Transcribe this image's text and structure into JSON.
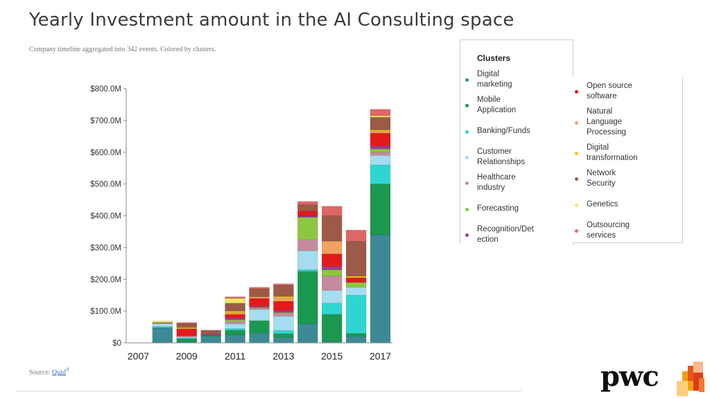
{
  "slide": {
    "title": "Yearly Investment amount in the AI Consulting space",
    "subtitle": "Company timeline aggregated into 342 events. Colored by clusters.",
    "source_prefix": "Source: ",
    "source_name": "Quid",
    "source_mark": "®"
  },
  "logo": {
    "text": "pwc"
  },
  "legend": {
    "title": "Clusters",
    "items": [
      {
        "label": "Digital marketing",
        "color": "#3d8a96"
      },
      {
        "label": "Mobile Application",
        "color": "#1a9850"
      },
      {
        "label": "Banking/Funds",
        "color": "#2fd6d1"
      },
      {
        "label": "Customer Relationships",
        "color": "#a6dcef"
      },
      {
        "label": "Healthcare industry",
        "color": "#c48b9c"
      },
      {
        "label": "Forecasting",
        "color": "#8dc63f"
      },
      {
        "label": "Recognition/Detection",
        "color": "#9b3d96"
      },
      {
        "label": "Open source software",
        "color": "#e31a1c"
      },
      {
        "label": "Natural Language Processing",
        "color": "#f4a261"
      },
      {
        "label": "Digital transformation",
        "color": "#f2c40f"
      },
      {
        "label": "Network Security",
        "color": "#9c5a47"
      },
      {
        "label": "Genetics",
        "color": "#f5e663"
      },
      {
        "label": "Outsourcing services",
        "color": "#e06666"
      }
    ]
  },
  "chart_data": {
    "type": "bar",
    "stacked": true,
    "categories": [
      "2007",
      "2008",
      "2009",
      "2010",
      "2011",
      "2012",
      "2013",
      "2014",
      "2015",
      "2016",
      "2017"
    ],
    "x_tick_labels": [
      "2007",
      "2009",
      "2011",
      "2013",
      "2015",
      "2017"
    ],
    "y_ticks": [
      "$0",
      "$100.0M",
      "$200.0M",
      "$300.0M",
      "$400.0M",
      "$500.0M",
      "$600.0M",
      "$700.0M",
      "$800.0M"
    ],
    "ylim": [
      0,
      800
    ],
    "ylabel": "",
    "xlabel": "",
    "series": [
      {
        "name": "Digital marketing",
        "values": [
          0,
          48,
          3,
          20,
          25,
          30,
          17,
          60,
          5,
          20,
          340
        ]
      },
      {
        "name": "Mobile Application",
        "values": [
          0,
          0,
          10,
          4,
          15,
          40,
          12,
          165,
          85,
          10,
          160
        ]
      },
      {
        "name": "Banking/Funds",
        "values": [
          0,
          3,
          2,
          0,
          5,
          0,
          10,
          5,
          35,
          120,
          60
        ]
      },
      {
        "name": "Customer Relationships",
        "values": [
          0,
          10,
          3,
          0,
          15,
          35,
          45,
          60,
          40,
          25,
          30
        ]
      },
      {
        "name": "Healthcare industry",
        "values": [
          0,
          0,
          4,
          0,
          8,
          5,
          10,
          35,
          45,
          0,
          10
        ]
      },
      {
        "name": "Forecasting",
        "values": [
          0,
          0,
          0,
          0,
          5,
          2,
          2,
          70,
          20,
          15,
          10
        ]
      },
      {
        "name": "Recognition/Detection",
        "values": [
          0,
          0,
          0,
          4,
          5,
          3,
          5,
          5,
          10,
          0,
          10
        ]
      },
      {
        "name": "Open source software",
        "values": [
          0,
          0,
          22,
          0,
          12,
          25,
          30,
          15,
          40,
          15,
          40
        ]
      },
      {
        "name": "Natural Language Processing",
        "values": [
          0,
          0,
          2,
          0,
          5,
          5,
          10,
          0,
          40,
          0,
          5
        ]
      },
      {
        "name": "Digital transformation",
        "values": [
          0,
          0,
          3,
          0,
          5,
          0,
          5,
          0,
          0,
          5,
          5
        ]
      },
      {
        "name": "Network Security",
        "values": [
          0,
          3,
          12,
          12,
          25,
          25,
          35,
          20,
          80,
          110,
          40
        ]
      },
      {
        "name": "Genetics",
        "values": [
          0,
          5,
          0,
          0,
          15,
          0,
          0,
          0,
          0,
          0,
          5
        ]
      },
      {
        "name": "Outsourcing services",
        "values": [
          0,
          0,
          3,
          0,
          5,
          5,
          5,
          10,
          30,
          35,
          20
        ]
      }
    ]
  }
}
